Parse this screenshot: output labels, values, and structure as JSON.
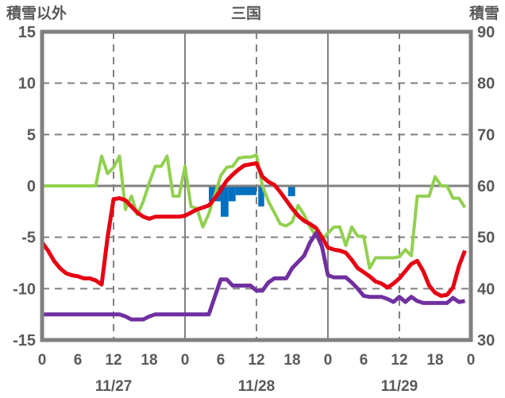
{
  "header": {
    "left_axis_label": "積雪以外",
    "title": "三国",
    "right_axis_label": "積雪"
  },
  "colors": {
    "frame": "#808080",
    "grid": "#808080",
    "text": "#595959",
    "red_line": "#e60012",
    "green_line": "#92d050",
    "purple_line": "#7030a0",
    "blue_bars": "#0070c0",
    "background": "#ffffff"
  },
  "chart_data": {
    "type": "line",
    "title": "三国",
    "left_axis": {
      "label": "積雪以外",
      "ticks": [
        15,
        10,
        5,
        0,
        -5,
        -10,
        -15
      ],
      "range": [
        -15,
        15
      ]
    },
    "right_axis": {
      "label": "積雪",
      "ticks": [
        90,
        80,
        70,
        60,
        50,
        40,
        30
      ],
      "range": [
        30,
        90
      ]
    },
    "x_axis": {
      "hours_range": [
        0,
        72
      ],
      "tick_step_hours": 6,
      "tick_labels": [
        "0",
        "6",
        "12",
        "18",
        "0",
        "6",
        "12",
        "18",
        "0",
        "6",
        "12",
        "18",
        "0"
      ],
      "date_labels": [
        {
          "label": "11/27",
          "center_hour": 12
        },
        {
          "label": "11/28",
          "center_hour": 36
        },
        {
          "label": "11/29",
          "center_hour": 60
        }
      ],
      "noon_dashed_gridlines_hours": [
        12,
        36,
        60
      ],
      "midnight_solid_gridlines_hours": [
        24,
        48
      ]
    },
    "grid": {
      "horizontal_dashed_at": [
        10,
        5,
        -5,
        -10
      ],
      "zero_line_at": 0
    },
    "series": [
      {
        "name": "green-line",
        "color": "#92d050",
        "axis": "left",
        "start_hour": 0,
        "step_hours": 1,
        "values": [
          0,
          0,
          0,
          0,
          0,
          0,
          0,
          0,
          0,
          0,
          2.9,
          1.2,
          1.8,
          2.9,
          -2.3,
          -1.0,
          -2.8,
          -1.5,
          0.3,
          1.9,
          1.9,
          2.9,
          -1.0,
          -1.0,
          1.9,
          -2.0,
          -2.2,
          -4.0,
          -2.7,
          -0.9,
          1.0,
          1.8,
          1.9,
          2.7,
          2.8,
          2.8,
          3.0,
          0.0,
          -1.5,
          -2.6,
          -3.7,
          -3.9,
          -3.5,
          -1.9,
          -2.8,
          -4.0,
          -4.9,
          -5.2,
          -4.6,
          -4.0,
          -4.0,
          -5.8,
          -4.0,
          -4.9,
          -4.9,
          -8.0,
          -7.0,
          -7.0,
          -7.0,
          -7.0,
          -6.9,
          -6.2,
          -6.8,
          -1.0,
          -1.0,
          -1.0,
          0.9,
          0.0,
          0.0,
          -1.2,
          -1.2,
          -2.1
        ]
      },
      {
        "name": "red-line",
        "color": "#e60012",
        "axis": "left",
        "start_hour": 0,
        "step_hours": 1,
        "values": [
          -5.5,
          -6.3,
          -7.3,
          -8.0,
          -8.5,
          -8.7,
          -8.8,
          -9.0,
          -9.0,
          -9.2,
          -9.6,
          -5.0,
          -1.3,
          -1.2,
          -1.4,
          -2.0,
          -2.6,
          -3.0,
          -3.2,
          -3.0,
          -3.0,
          -3.0,
          -3.0,
          -3.0,
          -2.9,
          -2.6,
          -2.3,
          -2.1,
          -1.9,
          -1.2,
          -0.4,
          0.5,
          1.1,
          1.6,
          2.0,
          2.1,
          2.2,
          0.9,
          0.4,
          0.1,
          -0.6,
          -1.4,
          -2.2,
          -2.9,
          -3.4,
          -3.7,
          -4.1,
          -5.0,
          -6.0,
          -6.2,
          -6.3,
          -6.5,
          -7.2,
          -8.0,
          -8.4,
          -8.8,
          -9.3,
          -9.5,
          -9.9,
          -9.5,
          -9.0,
          -8.3,
          -7.6,
          -7.3,
          -8.3,
          -9.7,
          -10.4,
          -10.7,
          -10.6,
          -9.9,
          -7.8,
          -6.3
        ]
      },
      {
        "name": "purple-line",
        "color": "#7030a0",
        "axis": "left",
        "start_hour": 0,
        "step_hours": 1,
        "values": [
          -12.5,
          -12.5,
          -12.5,
          -12.5,
          -12.5,
          -12.5,
          -12.5,
          -12.5,
          -12.5,
          -12.5,
          -12.5,
          -12.5,
          -12.5,
          -12.5,
          -12.7,
          -13.0,
          -13.0,
          -13.0,
          -12.7,
          -12.5,
          -12.5,
          -12.5,
          -12.5,
          -12.5,
          -12.5,
          -12.5,
          -12.5,
          -12.5,
          -12.5,
          -10.8,
          -9.1,
          -9.1,
          -9.7,
          -9.7,
          -9.7,
          -9.7,
          -10.2,
          -10.2,
          -9.4,
          -9.0,
          -9.0,
          -9.0,
          -8.0,
          -7.4,
          -6.8,
          -5.5,
          -4.6,
          -5.9,
          -8.7,
          -8.9,
          -8.9,
          -8.9,
          -9.4,
          -10.0,
          -10.7,
          -10.8,
          -10.8,
          -10.8,
          -11.0,
          -11.3,
          -10.8,
          -11.3,
          -10.8,
          -11.2,
          -11.4,
          -11.4,
          -11.4,
          -11.4,
          -11.4,
          -10.9,
          -11.3,
          -11.2
        ]
      }
    ],
    "bars": {
      "name": "blue-bars",
      "color": "#0070c0",
      "direction": "down-from-zero",
      "segments": [
        {
          "start_hour": 28.0,
          "end_hour": 30.0,
          "depth": 1.5
        },
        {
          "start_hour": 30.0,
          "end_hour": 31.3,
          "depth": 3.0
        },
        {
          "start_hour": 31.3,
          "end_hour": 32.5,
          "depth": 1.5
        },
        {
          "start_hour": 32.5,
          "end_hour": 36.0,
          "depth": 0.9
        },
        {
          "start_hour": 36.3,
          "end_hour": 37.3,
          "depth": 2.0
        },
        {
          "start_hour": 41.3,
          "end_hour": 42.5,
          "depth": 1.0
        }
      ]
    }
  }
}
